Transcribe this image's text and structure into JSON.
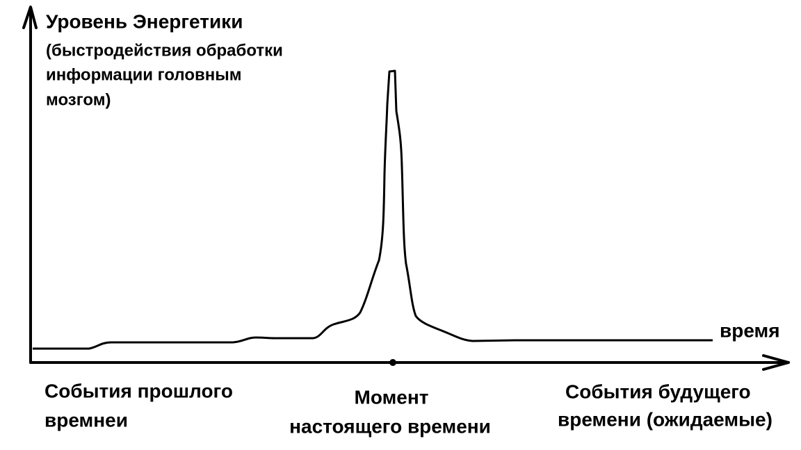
{
  "y_axis_label": {
    "title": "Уровень Энергетики",
    "lines": [
      "(быстродействия обработки",
      "информации головным",
      "мозгом)"
    ]
  },
  "x_axis_label": "время",
  "annotations": [
    {
      "lines": [
        "События прошлого",
        "времнеи"
      ]
    },
    {
      "lines": [
        "Момент",
        "настоящего времени"
      ]
    },
    {
      "lines": [
        "События будущего",
        "времени (ожидаемые)"
      ]
    }
  ]
}
